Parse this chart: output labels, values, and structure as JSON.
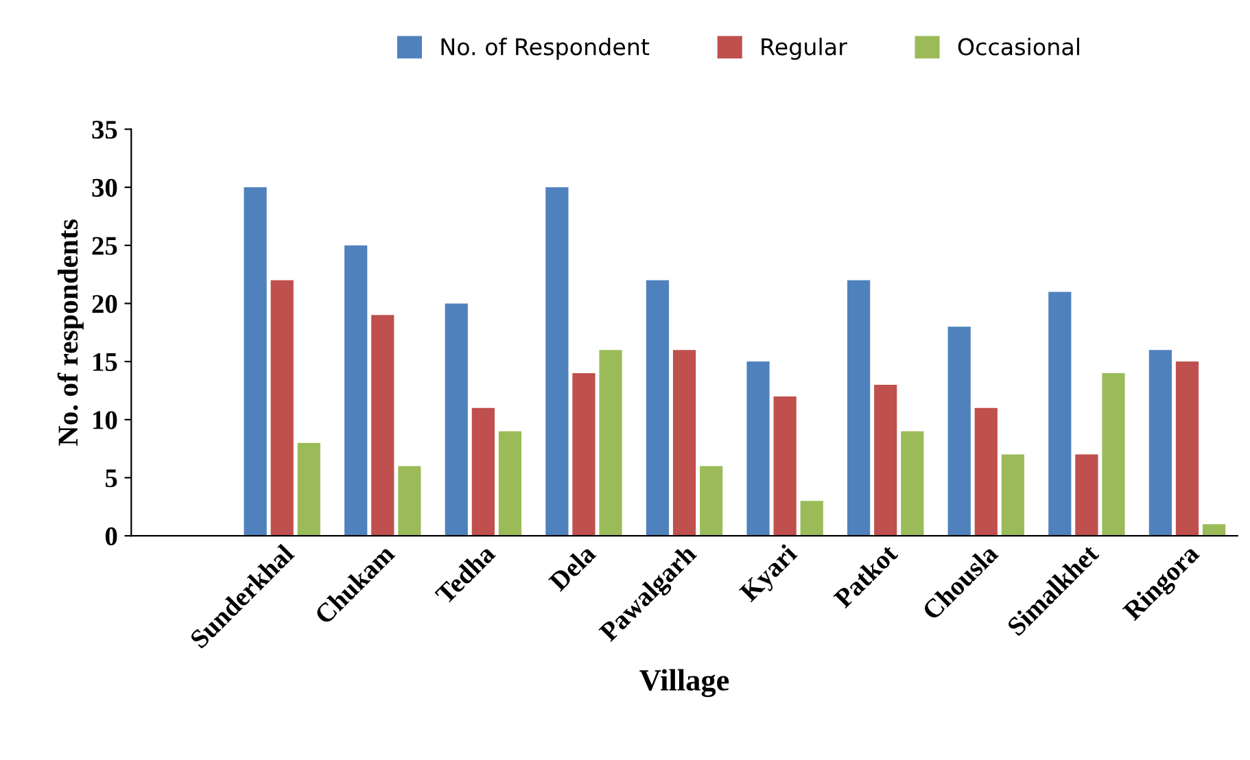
{
  "chart_data": {
    "type": "bar",
    "xlabel": "Village",
    "ylabel": "No. of respondents",
    "categories": [
      null,
      "Sunderkhal",
      "Chukam",
      "Tedha",
      "Dela",
      "Pawalgarh",
      "Kyari",
      "Patkot",
      "Chousla",
      "Simalkhet",
      "Ringora"
    ],
    "series": [
      {
        "name": "No. of Respondent",
        "color": "#4f81bd",
        "values": [
          null,
          30,
          25,
          20,
          30,
          22,
          15,
          22,
          18,
          21,
          16
        ]
      },
      {
        "name": "Regular",
        "color": "#c0504d",
        "values": [
          null,
          22,
          19,
          11,
          14,
          16,
          12,
          13,
          11,
          7,
          15
        ]
      },
      {
        "name": "Occasional",
        "color": "#9bbb59",
        "values": [
          null,
          8,
          6,
          9,
          16,
          6,
          3,
          9,
          7,
          14,
          1
        ]
      }
    ],
    "ylim": [
      0,
      35
    ],
    "yticks": [
      0,
      5,
      10,
      15,
      20,
      25,
      30,
      35
    ],
    "grid": false,
    "legend": "top"
  }
}
